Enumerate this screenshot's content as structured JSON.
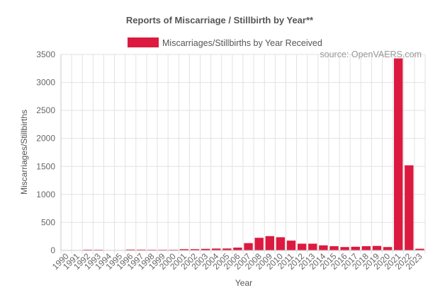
{
  "chart_data": {
    "type": "bar",
    "title": "Reports of Miscarriage / Stillbirth by Year**",
    "xlabel": "Year",
    "ylabel": "Miscarriages/Stillbirths",
    "ylim": [
      0,
      3500
    ],
    "yticks": [
      "0",
      "500",
      "1000",
      "1500",
      "2000",
      "2500",
      "3000",
      "3500"
    ],
    "ytick_values": [
      0,
      500,
      1000,
      1500,
      2000,
      2500,
      3000,
      3500
    ],
    "grid": true,
    "legend_position": "top",
    "annotation": "source: OpenVAERS.com",
    "categories": [
      "1990",
      "1991",
      "1992",
      "1993",
      "1994",
      "1995",
      "1996",
      "1997",
      "1998",
      "1999",
      "2000",
      "2001",
      "2002",
      "2003",
      "2004",
      "2005",
      "2006",
      "2007",
      "2008",
      "2009",
      "2010",
      "2011",
      "2012",
      "2013",
      "2014",
      "2015",
      "2016",
      "2017",
      "2018",
      "2019",
      "2020",
      "2021",
      "2022",
      "2023"
    ],
    "series": [
      {
        "name": "Miscarriages/Stillbirths by Year Received",
        "color": "#dc1a40",
        "values": [
          3,
          4,
          13,
          12,
          6,
          5,
          15,
          14,
          12,
          12,
          12,
          22,
          22,
          28,
          33,
          34,
          50,
          130,
          225,
          255,
          235,
          175,
          120,
          120,
          90,
          75,
          60,
          65,
          75,
          80,
          60,
          3430,
          1520,
          30
        ]
      }
    ]
  }
}
